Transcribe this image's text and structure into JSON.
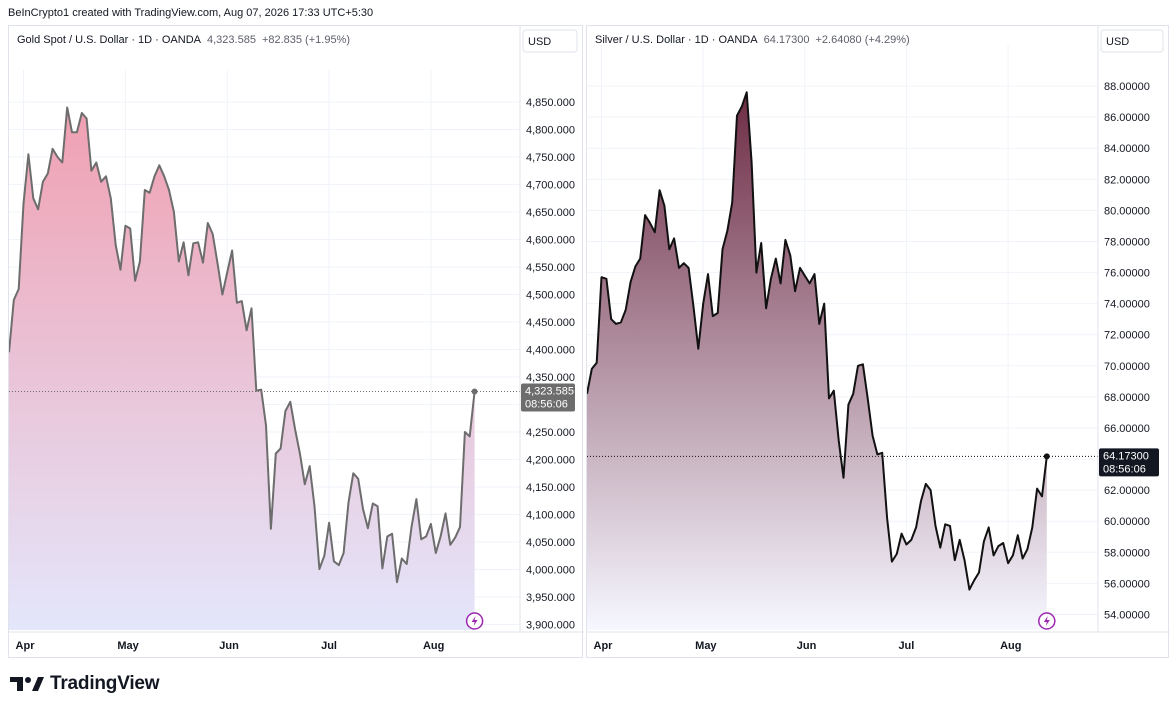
{
  "header": {
    "attribution": "BeInCrypto1 created with TradingView.com, Aug 07, 2026 17:33 UTC+5:30"
  },
  "footer": {
    "logo_text": "TradingView"
  },
  "chart_data": [
    {
      "type": "area",
      "legend": {
        "symbol": "Gold Spot / U.S. Dollar · 1D · OANDA",
        "price": "4,323.585",
        "change": "+82.835 (+1.95%)"
      },
      "currency": "USD",
      "last_price_label": "4,323.585",
      "countdown": "08:56:06",
      "ylim": [
        3890,
        4890
      ],
      "yticks": [
        3900,
        3950,
        4000,
        4050,
        4100,
        4150,
        4200,
        4250,
        4300,
        4350,
        4400,
        4450,
        4500,
        4550,
        4600,
        4650,
        4700,
        4750,
        4800,
        4850
      ],
      "ytick_labels": [
        "3,900.000",
        "3,950.000",
        "4,000.000",
        "4,050.000",
        "4,100.000",
        "4,150.000",
        "4,200.000",
        "4,250.000",
        "4,300.000",
        "4,350.000",
        "4,400.000",
        "4,450.000",
        "4,500.000",
        "4,550.000",
        "4,600.000",
        "4,650.000",
        "4,700.000",
        "4,750.000",
        "4,800.000",
        "4,850.000"
      ],
      "xlabels": [
        "Apr",
        "May",
        "Jun",
        "Jul",
        "Aug"
      ],
      "xlabel_index": [
        3,
        24,
        45,
        66,
        87
      ],
      "values": [
        4395,
        4490,
        4510,
        4665,
        4755,
        4675,
        4655,
        4705,
        4720,
        4765,
        4750,
        4740,
        4840,
        4795,
        4795,
        4830,
        4820,
        4725,
        4740,
        4705,
        4715,
        4675,
        4590,
        4545,
        4625,
        4620,
        4525,
        4560,
        4690,
        4685,
        4715,
        4735,
        4715,
        4690,
        4650,
        4560,
        4595,
        4535,
        4593,
        4595,
        4558,
        4630,
        4610,
        4557,
        4500,
        4540,
        4580,
        4485,
        4488,
        4435,
        4475,
        4325,
        4327,
        4262,
        4074,
        4211,
        4220,
        4288,
        4305,
        4255,
        4210,
        4155,
        4188,
        4115,
        4001,
        4025,
        4085,
        4015,
        4008,
        4030,
        4122,
        4175,
        4165,
        4110,
        4075,
        4120,
        4115,
        4002,
        4060,
        4065,
        3977,
        4020,
        4010,
        4077,
        4128,
        4055,
        4060,
        4083,
        4030,
        4060,
        4102,
        4045,
        4058,
        4077,
        4250,
        4242,
        4323.585
      ],
      "colors": {
        "line": "#6d6d6d",
        "fill_top": "#f0a0b2",
        "fill_bottom": "#e4e6fb"
      }
    },
    {
      "type": "area",
      "legend": {
        "symbol": "Silver / U.S. Dollar · 1D · OANDA",
        "price": "64.17300",
        "change": "+2.64080 (+4.29%)"
      },
      "currency": "USD",
      "last_price_label": "64.17300",
      "countdown": "08:56:06",
      "ylim": [
        53,
        90
      ],
      "yticks": [
        54,
        56,
        58,
        60,
        62,
        64,
        66,
        68,
        70,
        72,
        74,
        76,
        78,
        80,
        82,
        84,
        86,
        88
      ],
      "ytick_labels": [
        "54.00000",
        "56.00000",
        "58.00000",
        "60.00000",
        "62.00000",
        "64.00000",
        "66.00000",
        "68.00000",
        "70.00000",
        "72.00000",
        "74.00000",
        "76.00000",
        "78.00000",
        "80.00000",
        "82.00000",
        "84.00000",
        "86.00000",
        "88.00000"
      ],
      "xlabels": [
        "Apr",
        "May",
        "Jun",
        "Jul",
        "Aug"
      ],
      "xlabel_index": [
        3,
        24,
        45,
        66,
        87
      ],
      "values": [
        68.2,
        69.8,
        70.2,
        75.7,
        75.6,
        73.0,
        72.7,
        72.8,
        73.6,
        75.4,
        76.4,
        76.9,
        79.7,
        79.2,
        78.6,
        81.3,
        80.3,
        77.5,
        78.2,
        76.3,
        76.6,
        76.3,
        73.8,
        71.1,
        74.0,
        75.9,
        73.2,
        73.4,
        77.5,
        78.7,
        80.5,
        86.1,
        86.7,
        87.6,
        83.1,
        76.0,
        77.9,
        73.7,
        75.6,
        76.9,
        75.3,
        78.1,
        77.1,
        74.8,
        76.3,
        75.8,
        75.3,
        75.9,
        72.7,
        74.0,
        67.9,
        68.4,
        65.2,
        62.8,
        67.5,
        68.2,
        70.0,
        70.1,
        67.9,
        65.5,
        64.3,
        64.4,
        60.2,
        57.4,
        57.9,
        59.2,
        58.5,
        58.8,
        59.6,
        61.3,
        62.4,
        62.0,
        59.7,
        58.3,
        59.8,
        59.7,
        57.5,
        58.8,
        57.5,
        55.6,
        56.2,
        56.7,
        58.7,
        59.6,
        57.8,
        58.4,
        58.6,
        57.3,
        57.8,
        59.1,
        57.6,
        58.2,
        59.6,
        62.1,
        61.6,
        64.173
      ],
      "colors": {
        "line": "#111111",
        "fill_top": "#6e2d45",
        "fill_bottom": "#f6f7ff"
      }
    }
  ]
}
